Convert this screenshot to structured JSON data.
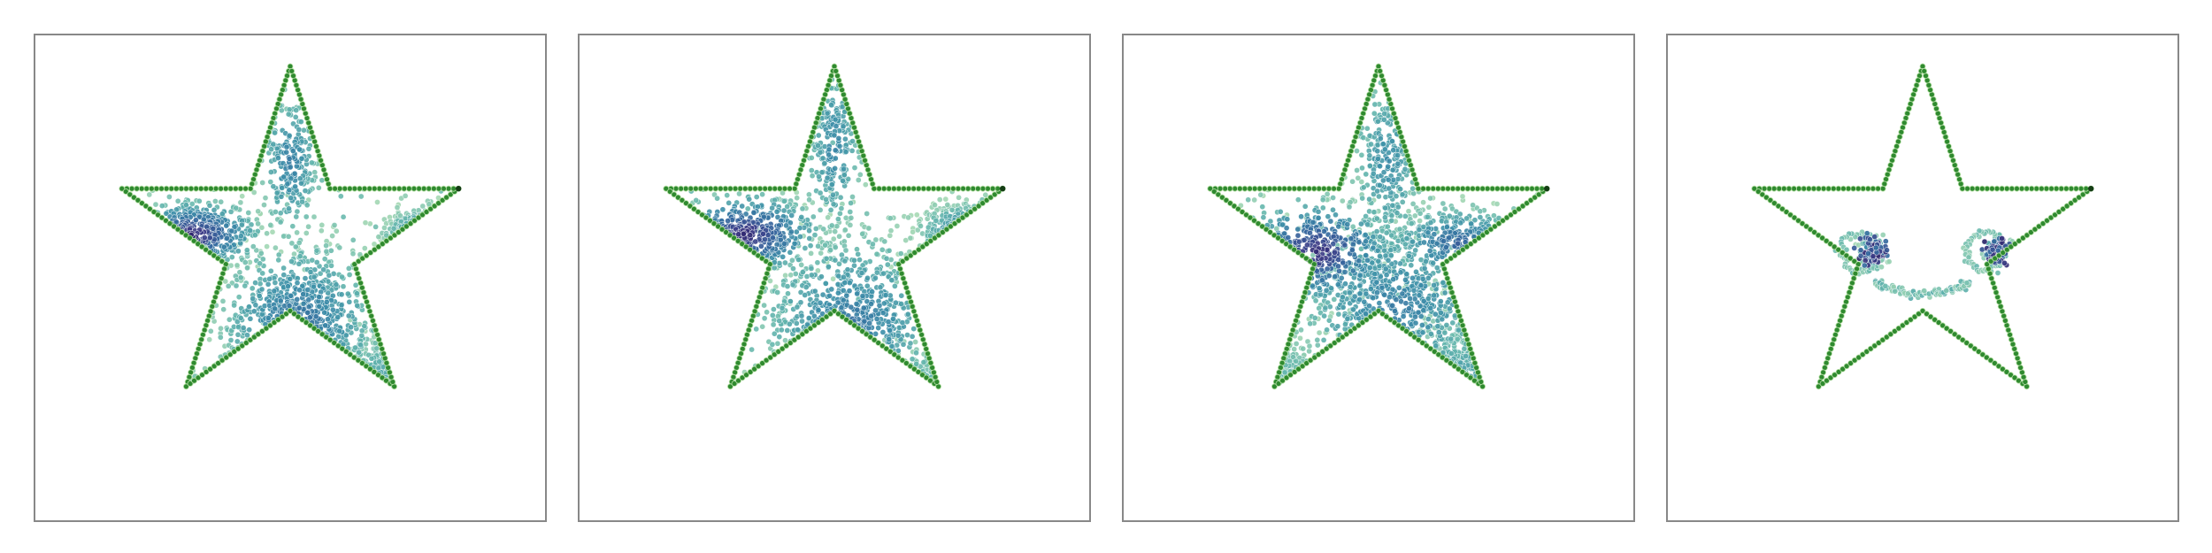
{
  "chart_data": [
    {
      "type": "scatter",
      "panel": 1,
      "outline_color": "#2f8a2f",
      "outline_edge": "#b8e0a8",
      "colormap": [
        "#a6d9b4",
        "#64b6ad",
        "#3c8fa8",
        "#33689e",
        "#3b3a86",
        "#2a1a5e"
      ],
      "clusters": [
        {
          "cx": -0.55,
          "cy": 0.05,
          "sx": 0.18,
          "sy": 0.09,
          "n": 320,
          "density": 1.0
        },
        {
          "cx": 0.85,
          "cy": 0.05,
          "sx": 0.14,
          "sy": 0.07,
          "n": 200,
          "density": 0.75
        },
        {
          "cx": 0.05,
          "cy": -0.45,
          "sx": 0.22,
          "sy": 0.22,
          "n": 520,
          "density": 0.65
        },
        {
          "cx": 0.0,
          "cy": 0.45,
          "sx": 0.08,
          "sy": 0.2,
          "n": 220,
          "density": 0.55
        },
        {
          "cx": -0.55,
          "cy": -0.95,
          "sx": 0.18,
          "sy": 0.1,
          "n": 180,
          "density": 0.45
        },
        {
          "cx": 0.55,
          "cy": -0.85,
          "sx": 0.15,
          "sy": 0.15,
          "n": 160,
          "density": 0.4
        }
      ]
    },
    {
      "type": "scatter",
      "panel": 2,
      "outline_color": "#2f8a2f",
      "outline_edge": "#b8e0a8",
      "colormap": [
        "#a6d9b4",
        "#64b6ad",
        "#3c8fa8",
        "#33689e",
        "#3b3a86",
        "#2a1a5e"
      ],
      "clusters": [
        {
          "cx": -0.5,
          "cy": 0.05,
          "sx": 0.2,
          "sy": 0.11,
          "n": 340,
          "density": 1.0
        },
        {
          "cx": 0.8,
          "cy": 0.05,
          "sx": 0.15,
          "sy": 0.08,
          "n": 180,
          "density": 0.65
        },
        {
          "cx": 0.1,
          "cy": -0.45,
          "sx": 0.25,
          "sy": 0.24,
          "n": 520,
          "density": 0.6
        },
        {
          "cx": 0.0,
          "cy": 0.55,
          "sx": 0.08,
          "sy": 0.25,
          "n": 220,
          "density": 0.5
        },
        {
          "cx": -0.5,
          "cy": -0.95,
          "sx": 0.2,
          "sy": 0.1,
          "n": 170,
          "density": 0.3
        },
        {
          "cx": 0.5,
          "cy": -0.95,
          "sx": 0.15,
          "sy": 0.15,
          "n": 160,
          "density": 0.4
        }
      ]
    },
    {
      "type": "scatter",
      "panel": 3,
      "outline_color": "#2f8a2f",
      "outline_edge": "#b8e0a8",
      "colormap": [
        "#a6d9b4",
        "#64b6ad",
        "#3c8fa8",
        "#33689e",
        "#3b3a86",
        "#2a1a5e"
      ],
      "clusters": [
        {
          "cx": -0.35,
          "cy": -0.05,
          "sx": 0.22,
          "sy": 0.14,
          "n": 360,
          "density": 1.0
        },
        {
          "cx": 0.45,
          "cy": 0.0,
          "sx": 0.2,
          "sy": 0.1,
          "n": 220,
          "density": 0.7
        },
        {
          "cx": 0.1,
          "cy": -0.35,
          "sx": 0.28,
          "sy": 0.25,
          "n": 520,
          "density": 0.55
        },
        {
          "cx": 0.05,
          "cy": 0.45,
          "sx": 0.1,
          "sy": 0.25,
          "n": 240,
          "density": 0.45
        },
        {
          "cx": -0.55,
          "cy": -0.85,
          "sx": 0.22,
          "sy": 0.14,
          "n": 260,
          "density": 0.25
        },
        {
          "cx": 0.45,
          "cy": -0.8,
          "sx": 0.18,
          "sy": 0.18,
          "n": 180,
          "density": 0.35
        }
      ]
    },
    {
      "type": "scatter",
      "panel": 4,
      "outline_color": "#2f8a2f",
      "outline_edge": "#b8e0a8",
      "colormap": [
        "#a6d9b4",
        "#64b6ad",
        "#3c8fa8",
        "#33689e",
        "#3b3a86",
        "#2a1a5e"
      ],
      "rings": [
        {
          "cx": -0.35,
          "cy": -0.05,
          "r": 0.11,
          "n": 60
        },
        {
          "cx": 0.35,
          "cy": -0.05,
          "r": 0.11,
          "n": 60
        }
      ],
      "clusters": [
        {
          "cx": -0.28,
          "cy": -0.05,
          "sx": 0.035,
          "sy": 0.04,
          "n": 80,
          "density": 1.0
        },
        {
          "cx": 0.42,
          "cy": -0.05,
          "sx": 0.035,
          "sy": 0.04,
          "n": 80,
          "density": 1.0
        }
      ],
      "smile": {
        "cx": 0.0,
        "cy": -0.2,
        "rx": 0.27,
        "ry": 0.16,
        "n": 110
      }
    }
  ]
}
